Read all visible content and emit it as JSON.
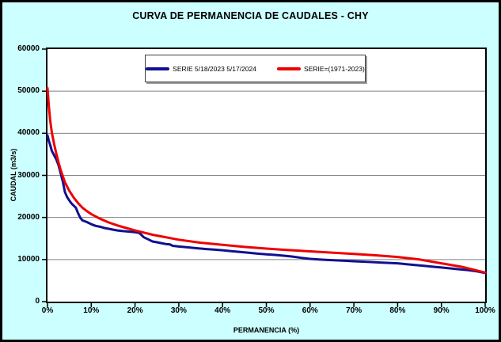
{
  "window": {
    "background_color": "#ccffff",
    "border_color": "#000000",
    "plot_background_color": "#ffffff",
    "gridline_color": "#808080"
  },
  "title": "CURVA DE PERMANENCIA DE CAUDALES - CHY",
  "legend": {
    "items": [
      {
        "label": "SERIE 5/18/2023 5/17/2024",
        "color": "#101090"
      },
      {
        "label": "SERIE=(1971-2023)",
        "color": "#ee0000"
      }
    ]
  },
  "chart_data": {
    "type": "line",
    "title": "CURVA DE PERMANENCIA DE CAUDALES - CHY",
    "xlabel": "PERMANENCIA (%)",
    "ylabel": "CAUDAL (m3/s)",
    "xlim": [
      0,
      100
    ],
    "ylim": [
      0,
      60000
    ],
    "grid": "horizontal",
    "legend_position": "top-center",
    "x_ticks": [
      "0%",
      "10%",
      "20%",
      "30%",
      "40%",
      "50%",
      "60%",
      "70%",
      "80%",
      "90%",
      "100%"
    ],
    "x_tick_values": [
      0,
      10,
      20,
      30,
      40,
      50,
      60,
      70,
      80,
      90,
      100
    ],
    "y_ticks": [
      0,
      10000,
      20000,
      30000,
      40000,
      50000,
      60000
    ],
    "series": [
      {
        "name": "SERIE 5/18/2023 5/17/2024",
        "color": "#101090",
        "x": [
          0,
          0.3,
          0.6,
          1,
          1.5,
          2,
          2.5,
          3,
          3.5,
          4,
          4.5,
          5,
          5.5,
          6,
          6.5,
          7,
          7.5,
          8,
          9,
          10,
          11,
          12,
          13,
          14,
          15,
          16,
          17,
          18,
          19,
          20,
          21,
          21.5,
          22,
          23,
          24,
          25,
          26,
          27,
          28,
          28.5,
          29,
          30,
          32,
          34,
          36,
          38,
          40,
          42,
          44,
          46,
          48,
          50,
          52,
          54,
          56,
          58,
          60,
          62,
          64,
          66,
          68,
          70,
          72,
          74,
          76,
          78,
          80,
          82,
          84,
          86,
          88,
          90,
          92,
          94,
          96,
          98,
          100
        ],
        "y": [
          39500,
          38200,
          37300,
          35800,
          34800,
          33800,
          32500,
          30500,
          28500,
          26000,
          24800,
          24000,
          23300,
          22800,
          22300,
          21000,
          19900,
          19300,
          18900,
          18400,
          18000,
          17800,
          17500,
          17300,
          17100,
          16900,
          16800,
          16700,
          16600,
          16500,
          16300,
          15800,
          15300,
          14800,
          14300,
          14100,
          13900,
          13700,
          13600,
          13300,
          13200,
          13100,
          12900,
          12700,
          12500,
          12350,
          12200,
          12000,
          11800,
          11600,
          11400,
          11250,
          11100,
          10900,
          10700,
          10400,
          10150,
          10000,
          9900,
          9800,
          9700,
          9600,
          9500,
          9400,
          9300,
          9200,
          9100,
          8900,
          8700,
          8500,
          8300,
          8100,
          7900,
          7700,
          7500,
          7200,
          6800
        ]
      },
      {
        "name": "SERIE=(1971-2023)",
        "color": "#ee0000",
        "x": [
          0,
          0.3,
          0.6,
          1,
          1.5,
          2,
          2.5,
          3,
          4,
          5,
          6,
          7,
          8,
          9,
          10,
          12,
          14,
          16,
          18,
          20,
          22,
          24,
          26,
          28,
          30,
          35,
          40,
          45,
          50,
          55,
          60,
          65,
          70,
          75,
          80,
          85,
          90,
          95,
          100
        ],
        "y": [
          50700,
          46500,
          43200,
          40200,
          37500,
          35200,
          33200,
          31300,
          28300,
          26300,
          24700,
          23400,
          22300,
          21500,
          20800,
          19700,
          18800,
          18100,
          17500,
          16900,
          16400,
          15900,
          15500,
          15100,
          14700,
          14000,
          13500,
          13000,
          12600,
          12250,
          11950,
          11650,
          11350,
          11000,
          10600,
          10000,
          9100,
          8200,
          6900
        ]
      }
    ]
  }
}
